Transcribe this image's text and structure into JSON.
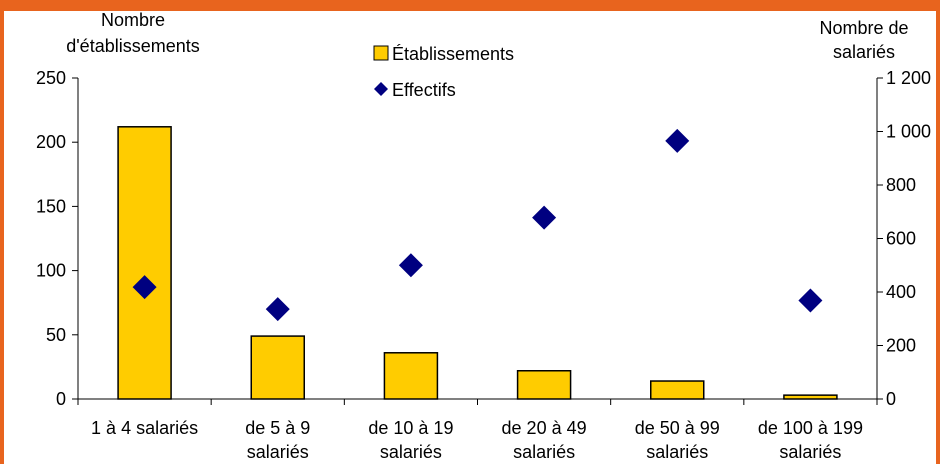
{
  "chart_data": {
    "type": "bar",
    "categories": [
      [
        "1 à 4 salariés"
      ],
      [
        "de 5 à 9",
        "salariés"
      ],
      [
        "de 10 à 19",
        "salariés"
      ],
      [
        "de  20 à 49",
        "salariés"
      ],
      [
        "de 50 à 99",
        "salariés"
      ],
      [
        "de 100 à 199",
        "salariés"
      ]
    ],
    "y_left_title": [
      "Nombre",
      "d'établissements"
    ],
    "y_right_title": [
      "Nombre de",
      "salariés"
    ],
    "y_left_ticks": [
      "0",
      "50",
      "100",
      "150",
      "200",
      "250"
    ],
    "y_right_ticks": [
      "0",
      "200",
      "400",
      "600",
      "800",
      "1 000",
      "1 200"
    ],
    "ylim_left": [
      0,
      250
    ],
    "ylim_right": [
      0,
      1200
    ],
    "series": [
      {
        "name": "Établissements",
        "kind": "bar",
        "axis": "left",
        "values": [
          212,
          49,
          36,
          22,
          14,
          3
        ],
        "color": "#ffcc00",
        "stroke": "#000000"
      },
      {
        "name": "Effectifs",
        "kind": "marker",
        "axis": "right",
        "values": [
          418,
          336,
          500,
          678,
          965,
          368
        ],
        "color": "#000080"
      }
    ],
    "legend_position": "top-center",
    "grid": false
  },
  "colors": {
    "frame": "#e8641e"
  }
}
